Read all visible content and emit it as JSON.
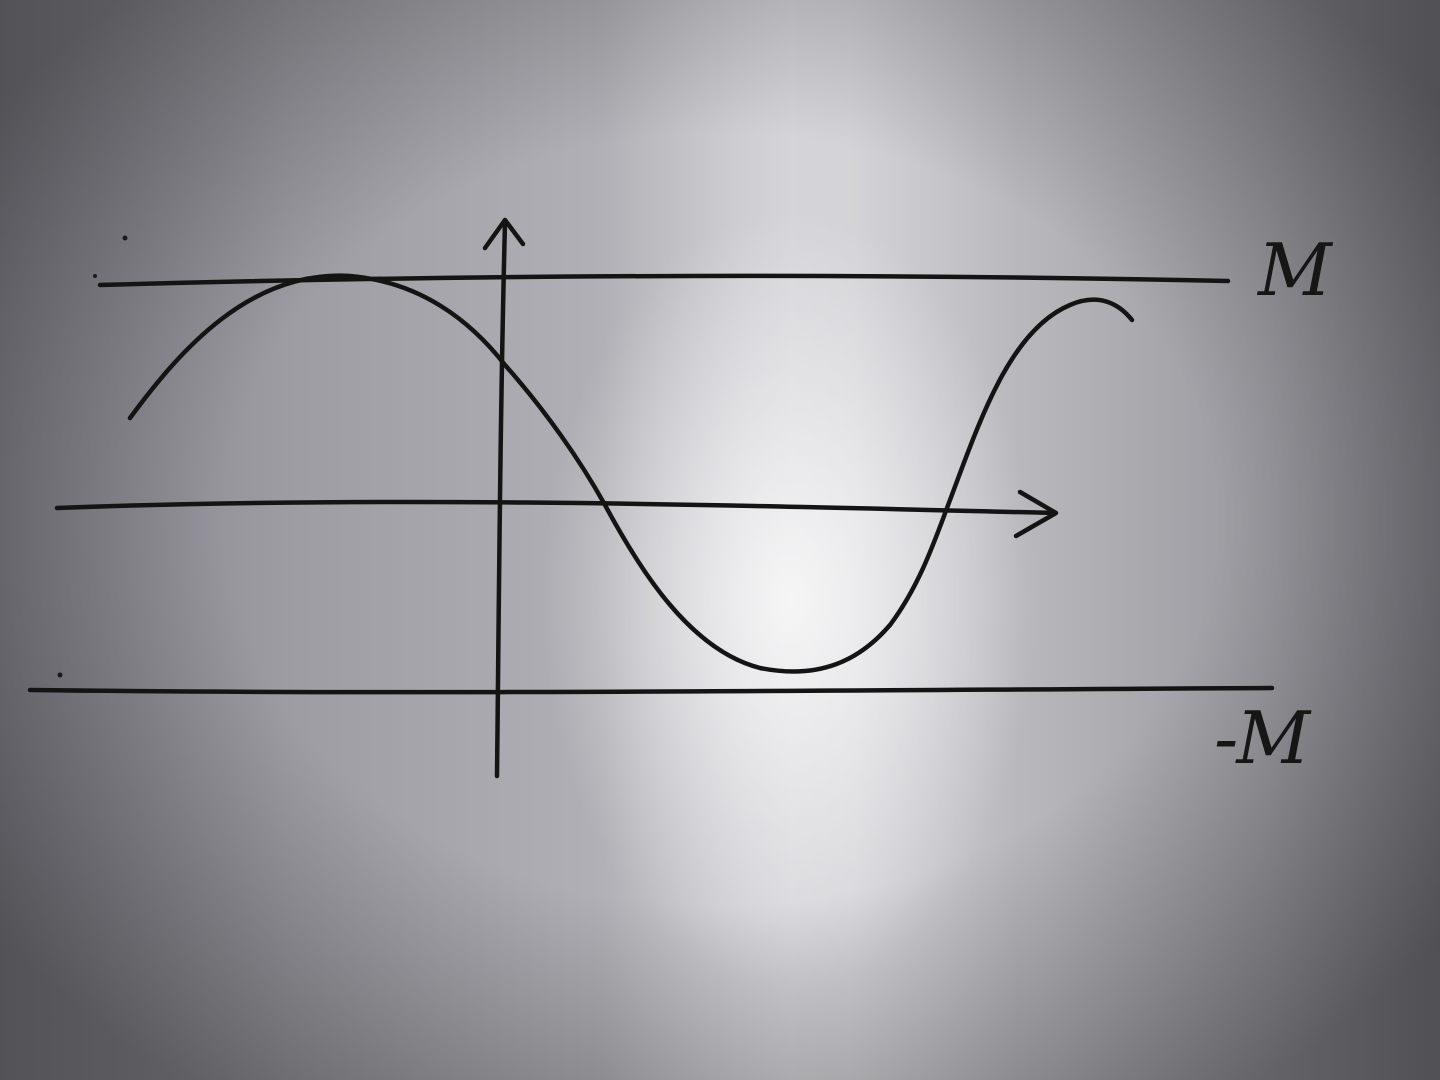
{
  "diagram": {
    "labels": {
      "upper_bound": "M",
      "lower_bound": "-M"
    }
  }
}
